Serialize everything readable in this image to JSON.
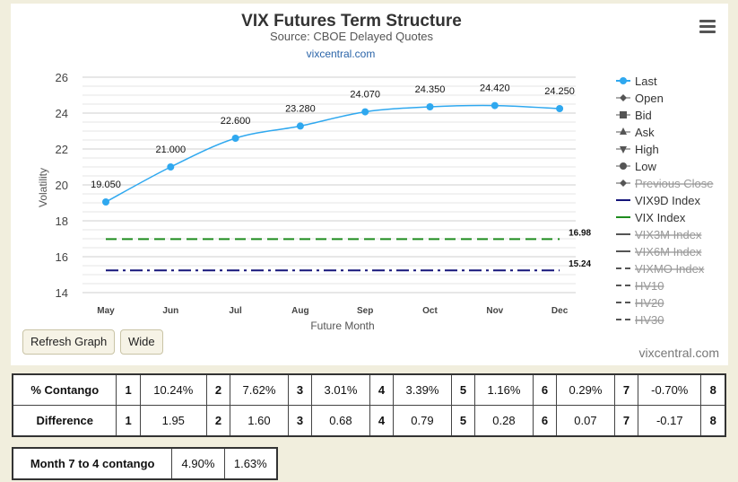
{
  "chart_data": {
    "type": "line",
    "title": "VIX Futures Term Structure",
    "subtitle": "Source: CBOE Delayed Quotes",
    "source_link": "vixcentral.com",
    "xlabel": "Future Month",
    "ylabel": "Volatility",
    "ylim": [
      14,
      26
    ],
    "yticks": [
      14,
      16,
      18,
      20,
      22,
      24,
      26
    ],
    "categories": [
      "May",
      "Jun",
      "Jul",
      "Aug",
      "Sep",
      "Oct",
      "Nov",
      "Dec"
    ],
    "series": [
      {
        "name": "Last",
        "type": "line",
        "color": "#2fa8ef",
        "values": [
          19.05,
          21.0,
          22.6,
          23.28,
          24.07,
          24.35,
          24.42,
          24.25
        ],
        "labels": [
          "19.050",
          "21.000",
          "22.600",
          "23.280",
          "24.070",
          "24.350",
          "24.420",
          "24.250"
        ]
      },
      {
        "name": "VIX Index",
        "type": "hline",
        "color": "#1e8c1e",
        "value": 16.98,
        "label": "16.98"
      },
      {
        "name": "VIX9D Index",
        "type": "hline",
        "color": "#15157a",
        "value": 15.24,
        "label": "15.24"
      }
    ],
    "legend": {
      "placement": "right",
      "items": [
        {
          "name": "Last",
          "marker": "dot-line",
          "hidden": false
        },
        {
          "name": "Open",
          "marker": "diamond",
          "hidden": false
        },
        {
          "name": "Bid",
          "marker": "square",
          "hidden": false
        },
        {
          "name": "Ask",
          "marker": "triangle-up",
          "hidden": false
        },
        {
          "name": "High",
          "marker": "triangle-down",
          "hidden": false
        },
        {
          "name": "Low",
          "marker": "circle",
          "hidden": false
        },
        {
          "name": "Previous Close",
          "marker": "diamond",
          "hidden": true
        },
        {
          "name": "VIX9D Index",
          "marker": "line-navy",
          "hidden": false
        },
        {
          "name": "VIX Index",
          "marker": "line-green",
          "hidden": false
        },
        {
          "name": "VIX3M Index",
          "marker": "line-gray",
          "hidden": true
        },
        {
          "name": "VIX6M Index",
          "marker": "line-gray",
          "hidden": true
        },
        {
          "name": "VIXMO Index",
          "marker": "dash-gray",
          "hidden": true
        },
        {
          "name": "HV10",
          "marker": "dash-gray",
          "hidden": true
        },
        {
          "name": "HV20",
          "marker": "dash-gray",
          "hidden": true
        },
        {
          "name": "HV30",
          "marker": "dash-gray",
          "hidden": true
        }
      ]
    },
    "grid": true
  },
  "buttons": {
    "refresh": "Refresh Graph",
    "wide": "Wide"
  },
  "credit": "vixcentral.com",
  "contango_table": {
    "rows": [
      {
        "label": "% Contango",
        "cells": [
          [
            "1",
            "10.24%"
          ],
          [
            "2",
            "7.62%"
          ],
          [
            "3",
            "3.01%"
          ],
          [
            "4",
            "3.39%"
          ],
          [
            "5",
            "1.16%"
          ],
          [
            "6",
            "0.29%"
          ],
          [
            "7",
            "-0.70%"
          ],
          [
            "8",
            ""
          ]
        ]
      },
      {
        "label": "Difference",
        "cells": [
          [
            "1",
            "1.95"
          ],
          [
            "2",
            "1.60"
          ],
          [
            "3",
            "0.68"
          ],
          [
            "4",
            "0.79"
          ],
          [
            "5",
            "0.28"
          ],
          [
            "6",
            "0.07"
          ],
          [
            "7",
            "-0.17"
          ],
          [
            "8",
            ""
          ]
        ]
      }
    ]
  },
  "month_table": {
    "label": "Month 7 to 4 contango",
    "value1": "4.90%",
    "value2": "1.63%"
  }
}
